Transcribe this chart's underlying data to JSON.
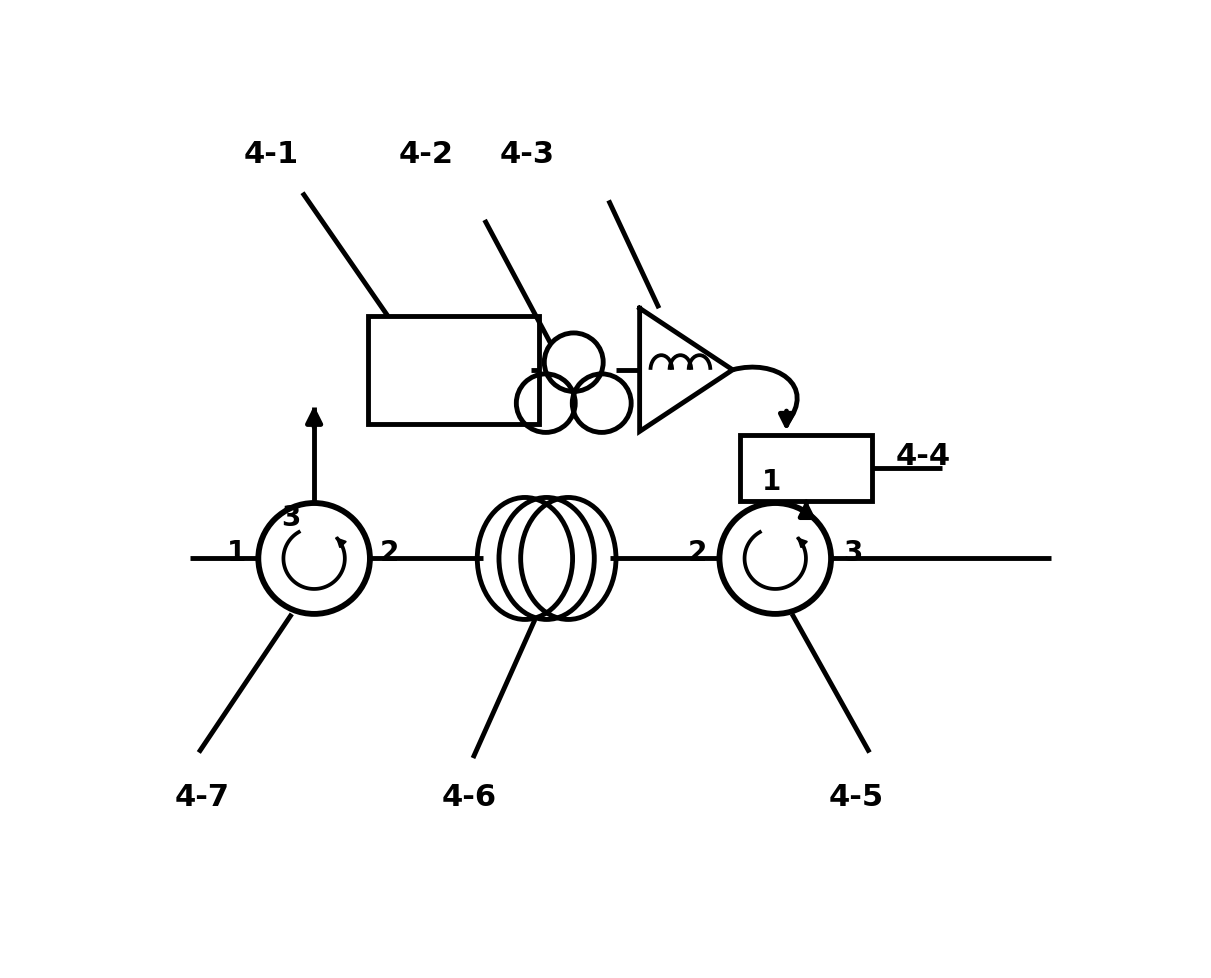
{
  "bg": "#ffffff",
  "lc": "#000000",
  "lw": 3.5,
  "fw": 12.11,
  "fh": 9.79,
  "xlim": [
    0,
    12.11
  ],
  "ylim": [
    0,
    9.79
  ]
}
